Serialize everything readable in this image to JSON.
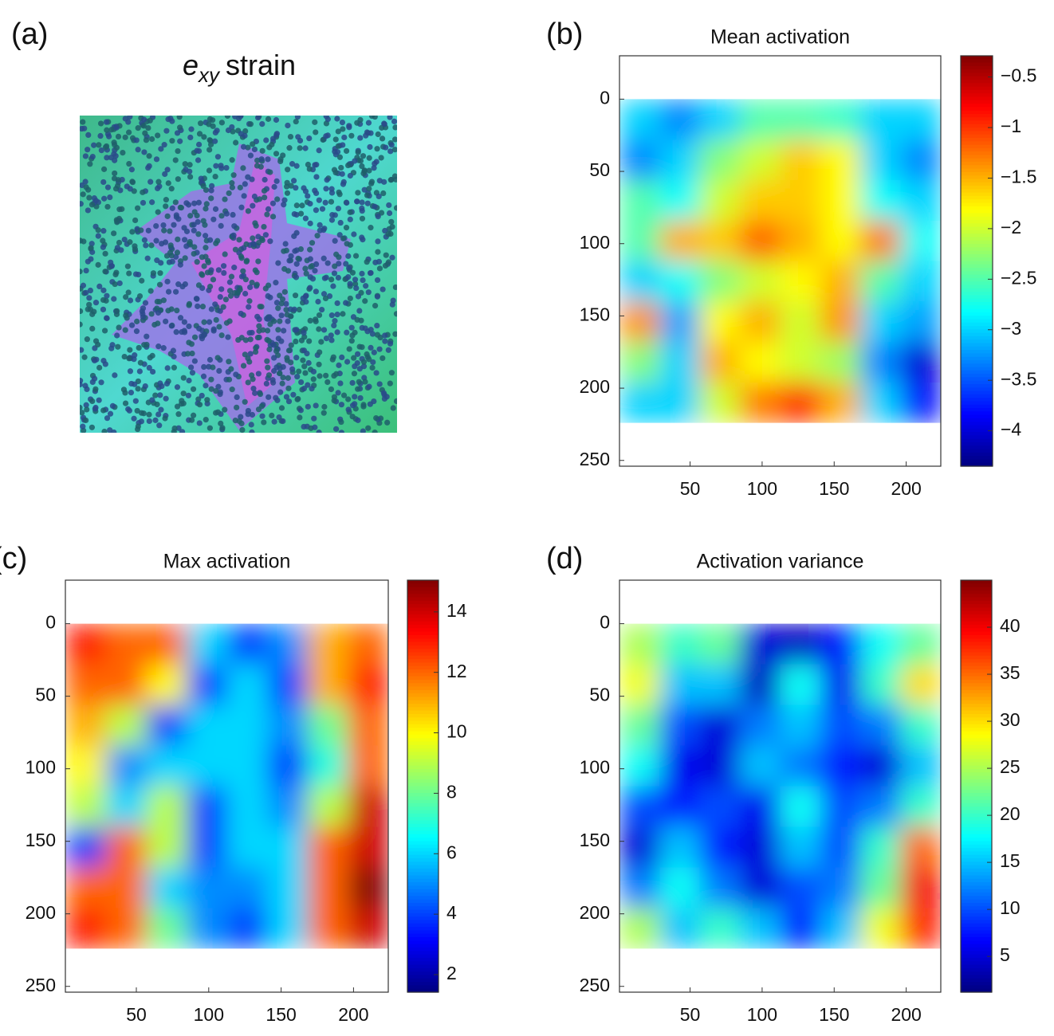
{
  "chart_data": [
    {
      "type": "image",
      "panel_label": "(a)",
      "title": {
        "symbol": "e",
        "subscript": "xy",
        "text": "strain"
      }
    },
    {
      "type": "heatmap",
      "panel_label": "(b)",
      "title": "Mean activation",
      "colormap": "jet",
      "xlim": [
        1,
        224
      ],
      "xticks": [
        50,
        100,
        150,
        200
      ],
      "ylim": [
        -30,
        254
      ],
      "y_reversed": true,
      "yticks": [
        0,
        50,
        100,
        150,
        200,
        250
      ],
      "extent": [
        1,
        224,
        0,
        224
      ],
      "z": [
        [
          -3,
          -3.3,
          -3,
          -2.5,
          -2.5,
          -2.6,
          -3,
          -3
        ],
        [
          -3.3,
          -3,
          -2.3,
          -2,
          -1.6,
          -1.8,
          -3,
          -3.3
        ],
        [
          -2.5,
          -2.8,
          -2,
          -1.6,
          -1.6,
          -1.8,
          -2.8,
          -3
        ],
        [
          -2.5,
          -1.5,
          -1.6,
          -1.2,
          -1.5,
          -1.8,
          -1.3,
          -2.8
        ],
        [
          -3,
          -2.8,
          -2.3,
          -2,
          -1.8,
          -1.5,
          -2.5,
          -3
        ],
        [
          -1.4,
          -3.2,
          -1.8,
          -1.5,
          -2,
          -1.4,
          -3,
          -3.2
        ],
        [
          -2.3,
          -3,
          -1.5,
          -1.8,
          -2,
          -2.2,
          -3.3,
          -4
        ],
        [
          -3,
          -3,
          -2,
          -1.3,
          -1,
          -1.5,
          -3,
          -3.8
        ]
      ],
      "clim": [
        -4.35,
        -0.29
      ],
      "cticks": [
        {
          "value": -0.5,
          "label": "−0.5"
        },
        {
          "value": -1,
          "label": "−1"
        },
        {
          "value": -1.5,
          "label": "−1.5"
        },
        {
          "value": -2,
          "label": "−2"
        },
        {
          "value": -2.5,
          "label": "−2.5"
        },
        {
          "value": -3,
          "label": "−3"
        },
        {
          "value": -3.5,
          "label": "−3.5"
        },
        {
          "value": -4,
          "label": "−4"
        }
      ]
    },
    {
      "type": "heatmap",
      "panel_label": "(c)",
      "title": "Max activation",
      "colormap": "jet",
      "xlim": [
        1,
        224
      ],
      "xticks": [
        50,
        100,
        150,
        200
      ],
      "ylim": [
        -30,
        254
      ],
      "y_reversed": true,
      "yticks": [
        0,
        50,
        100,
        150,
        200,
        250
      ],
      "extent": [
        1,
        224,
        0,
        224
      ],
      "z": [
        [
          13,
          12,
          12,
          6,
          4,
          5,
          11,
          12
        ],
        [
          12,
          12,
          10,
          4,
          6,
          4,
          11,
          13
        ],
        [
          11,
          9,
          4,
          6,
          6,
          5,
          8,
          12
        ],
        [
          10,
          5,
          6,
          6,
          6,
          4,
          7,
          12
        ],
        [
          9,
          6,
          9,
          4,
          6,
          5,
          9,
          14
        ],
        [
          4,
          12,
          9,
          4,
          6,
          6,
          12,
          14
        ],
        [
          12,
          12,
          6,
          5,
          5,
          6,
          12,
          15
        ],
        [
          13,
          12,
          8,
          5,
          4,
          6,
          12,
          14
        ]
      ],
      "clim": [
        1.42,
        15.05
      ],
      "cticks": [
        2,
        4,
        6,
        8,
        10,
        12,
        14
      ]
    },
    {
      "type": "heatmap",
      "panel_label": "(d)",
      "title": "Activation variance",
      "colormap": "jet",
      "xlim": [
        1,
        224
      ],
      "xticks": [
        50,
        100,
        150,
        200
      ],
      "ylim": [
        -30,
        254
      ],
      "y_reversed": true,
      "yticks": [
        0,
        50,
        100,
        150,
        200,
        250
      ],
      "extent": [
        1,
        224,
        0,
        224
      ],
      "z": [
        [
          25,
          20,
          22,
          5,
          4,
          8,
          18,
          22
        ],
        [
          28,
          15,
          15,
          4,
          18,
          6,
          20,
          30
        ],
        [
          22,
          10,
          5,
          12,
          15,
          10,
          12,
          20
        ],
        [
          18,
          6,
          5,
          15,
          12,
          8,
          5,
          15
        ],
        [
          10,
          8,
          10,
          6,
          18,
          10,
          12,
          20
        ],
        [
          5,
          15,
          8,
          5,
          15,
          10,
          20,
          35
        ],
        [
          12,
          18,
          12,
          5,
          10,
          12,
          22,
          40
        ],
        [
          25,
          15,
          20,
          15,
          8,
          15,
          28,
          38
        ]
      ],
      "clim": [
        1.2,
        45
      ],
      "cticks": [
        5,
        10,
        15,
        20,
        25,
        30,
        35,
        40
      ]
    }
  ]
}
